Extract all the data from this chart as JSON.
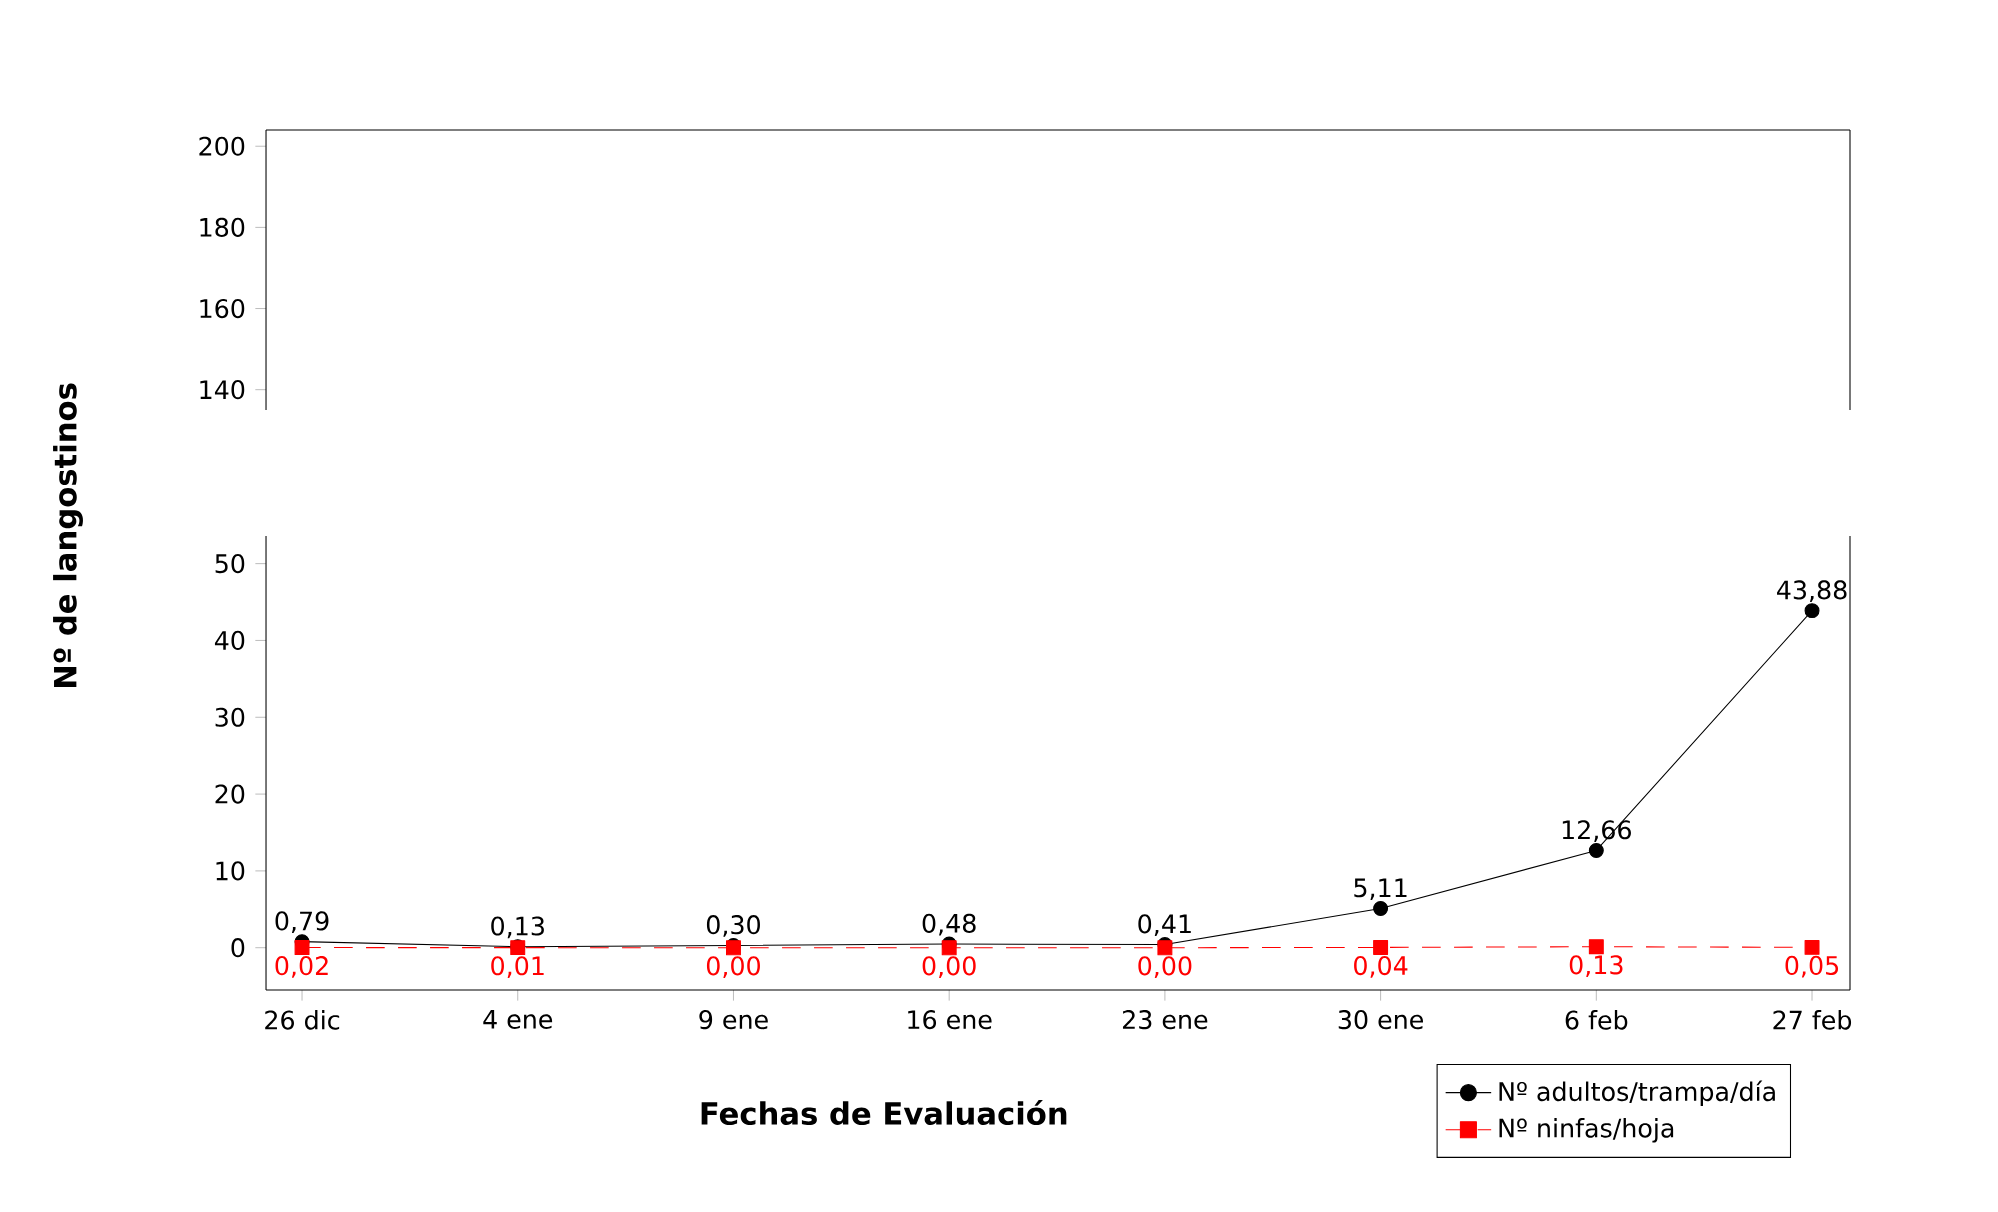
{
  "chart_data": [
    {
      "type": "line",
      "categories": [
        null,
        null,
        null,
        null,
        null,
        null,
        null,
        null
      ],
      "ylim": [
        135,
        204
      ],
      "yticks": [
        140,
        160,
        180,
        200
      ],
      "tick_labels": "y"
    },
    {
      "type": "line",
      "categories": [
        "26 dic",
        "4 ene",
        "9 ene",
        "16 ene",
        "23 ene",
        "30 ene",
        "6 feb",
        "27 feb"
      ],
      "ylim": [
        -5.5,
        53.6
      ],
      "yticks": [
        0,
        10,
        20,
        30,
        40,
        50
      ],
      "xlabel": "Fechas de Evaluación",
      "ylabel": "Nº de langostinos",
      "legend": "bottom right",
      "series": [
        {
          "name": "Nº adultos/trampa/día",
          "color": "#000000",
          "marker": "circle",
          "line_style": "solid",
          "values": [
            0.79,
            0.13,
            0.3,
            0.48,
            0.41,
            5.11,
            12.66,
            43.88
          ],
          "value_labels": [
            "0,79",
            "0,13",
            "0,30",
            "0,48",
            "0,41",
            "5,11",
            "12,66",
            "43,88"
          ]
        },
        {
          "name": "Nº ninfas/hoja",
          "color": "#ff0000",
          "marker": "square",
          "line_style": "dashed",
          "values": [
            0.02,
            0.01,
            0.0,
            0.0,
            0.0,
            0.04,
            0.13,
            0.05
          ],
          "value_labels": [
            "0,02",
            "0,01",
            "0,00",
            "0,00",
            "0,00",
            "0,04",
            "0,13",
            "0,05"
          ]
        }
      ]
    }
  ]
}
